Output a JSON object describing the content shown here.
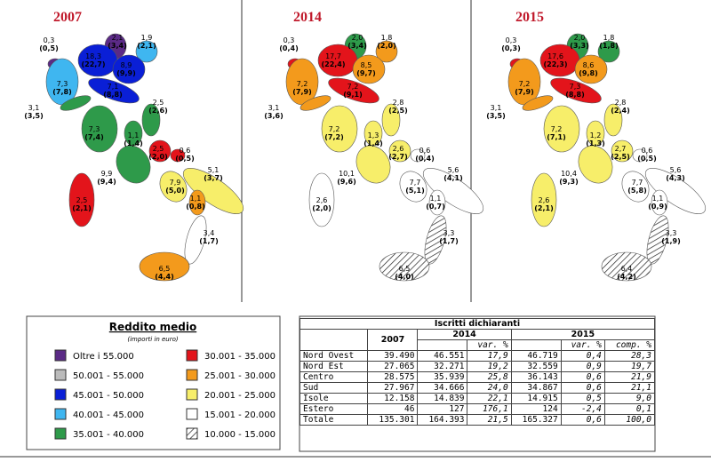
{
  "maps": [
    {
      "title": "2007",
      "regions": [
        {
          "value": "0,3",
          "share": "(0,5)",
          "color": "#5b2a86"
        },
        {
          "value": "2,1",
          "share": "(3,4)",
          "color": "#5b2a86"
        },
        {
          "value": "1,9",
          "share": "(2,1)",
          "color": "#3fb6f0"
        },
        {
          "value": "18,3",
          "share": "(22,7)",
          "color": "#0a1fd6"
        },
        {
          "value": "8,9",
          "share": "(9,9)",
          "color": "#0a1fd6"
        },
        {
          "value": "7,3",
          "share": "(7,8)",
          "color": "#3fb6f0"
        },
        {
          "value": "7,1",
          "share": "(8,8)",
          "color": "#0a1fd6"
        },
        {
          "value": "3,1",
          "share": "(3,5)",
          "color": "#2e9a4a"
        },
        {
          "value": "2,5",
          "share": "(2,6)",
          "color": "#2e9a4a"
        },
        {
          "value": "7,3",
          "share": "(7,4)",
          "color": "#2e9a4a"
        },
        {
          "value": "1,1",
          "share": "(1,4)",
          "color": "#2e9a4a"
        },
        {
          "value": "9,9",
          "share": "(9,4)",
          "color": "#2e9a4a"
        },
        {
          "value": "2,5",
          "share": "(2,0)",
          "color": "#e3141b"
        },
        {
          "value": "0,6",
          "share": "(0,5)",
          "color": "#e3141b"
        },
        {
          "value": "7,9",
          "share": "(5,0)",
          "color": "#f7ee6a"
        },
        {
          "value": "5,1",
          "share": "(3,7)",
          "color": "#f7ee6a"
        },
        {
          "value": "1,1",
          "share": "(0,8)",
          "color": "#f39a1c"
        },
        {
          "value": "3,4",
          "share": "(1,7)",
          "color": "#ffffff"
        },
        {
          "value": "6,5",
          "share": "(4,4)",
          "color": "#f39a1c"
        },
        {
          "value": "2,5",
          "share": "(2,1)",
          "color": "#e3141b"
        }
      ]
    },
    {
      "title": "2014",
      "regions": [
        {
          "value": "0,3",
          "share": "(0,4)",
          "color": "#e3141b"
        },
        {
          "value": "2,0",
          "share": "(3,4)",
          "color": "#2e9a4a"
        },
        {
          "value": "1,8",
          "share": "(2,0)",
          "color": "#f39a1c"
        },
        {
          "value": "17,7",
          "share": "(22,4)",
          "color": "#e3141b"
        },
        {
          "value": "8,5",
          "share": "(9,7)",
          "color": "#f39a1c"
        },
        {
          "value": "7,2",
          "share": "(7,9)",
          "color": "#f39a1c"
        },
        {
          "value": "7,2",
          "share": "(9,1)",
          "color": "#e3141b"
        },
        {
          "value": "3,1",
          "share": "(3,6)",
          "color": "#f39a1c"
        },
        {
          "value": "2,8",
          "share": "(2,5)",
          "color": "#f7ee6a"
        },
        {
          "value": "7,2",
          "share": "(7,2)",
          "color": "#f7ee6a"
        },
        {
          "value": "1,3",
          "share": "(1,4)",
          "color": "#f7ee6a"
        },
        {
          "value": "10,1",
          "share": "(9,6)",
          "color": "#f7ee6a"
        },
        {
          "value": "2,6",
          "share": "(2,7)",
          "color": "#f7ee6a"
        },
        {
          "value": "0,6",
          "share": "(0,4)",
          "color": "#ffffff"
        },
        {
          "value": "7,7",
          "share": "(5,1)",
          "color": "#ffffff"
        },
        {
          "value": "5,6",
          "share": "(4,1)",
          "color": "#ffffff"
        },
        {
          "value": "1,1",
          "share": "(0,7)",
          "color": "#ffffff"
        },
        {
          "value": "3,3",
          "share": "(1,7)",
          "color": "#ffffff",
          "hatched": true
        },
        {
          "value": "6,5",
          "share": "(4,0)",
          "color": "#ffffff",
          "hatched": true
        },
        {
          "value": "2,6",
          "share": "(2,0)",
          "color": "#ffffff"
        }
      ]
    },
    {
      "title": "2015",
      "regions": [
        {
          "value": "0,3",
          "share": "(0,3)",
          "color": "#e3141b"
        },
        {
          "value": "2,0",
          "share": "(3,3)",
          "color": "#2e9a4a"
        },
        {
          "value": "1,8",
          "share": "(1,8)",
          "color": "#2e9a4a"
        },
        {
          "value": "17,6",
          "share": "(22,3)",
          "color": "#e3141b"
        },
        {
          "value": "8,6",
          "share": "(9,8)",
          "color": "#f39a1c"
        },
        {
          "value": "7,2",
          "share": "(7,9)",
          "color": "#f39a1c"
        },
        {
          "value": "7,3",
          "share": "(8,8)",
          "color": "#e3141b"
        },
        {
          "value": "3,1",
          "share": "(3,5)",
          "color": "#f39a1c"
        },
        {
          "value": "2,8",
          "share": "(2,4)",
          "color": "#f7ee6a"
        },
        {
          "value": "7,2",
          "share": "(7,1)",
          "color": "#f7ee6a"
        },
        {
          "value": "1,2",
          "share": "(1,3)",
          "color": "#f7ee6a"
        },
        {
          "value": "10,4",
          "share": "(9,3)",
          "color": "#f7ee6a"
        },
        {
          "value": "2,7",
          "share": "(2,5)",
          "color": "#f7ee6a"
        },
        {
          "value": "0,6",
          "share": "(0,5)",
          "color": "#ffffff"
        },
        {
          "value": "7,7",
          "share": "(5,8)",
          "color": "#ffffff"
        },
        {
          "value": "5,6",
          "share": "(4,3)",
          "color": "#ffffff"
        },
        {
          "value": "1,1",
          "share": "(0,9)",
          "color": "#ffffff"
        },
        {
          "value": "3,3",
          "share": "(1,9)",
          "color": "#ffffff",
          "hatched": true
        },
        {
          "value": "6,4",
          "share": "(4,2)",
          "color": "#ffffff",
          "hatched": true
        },
        {
          "value": "2,6",
          "share": "(2,1)",
          "color": "#f7ee6a"
        }
      ]
    }
  ],
  "legend": {
    "title": "Reddito medio",
    "subtitle": "(importi in euro)",
    "items": [
      {
        "label": "Oltre i 55.000",
        "color": "#5b2a86"
      },
      {
        "label": "50.001 - 55.000",
        "color": "#bbbbbb"
      },
      {
        "label": "45.001 - 50.000",
        "color": "#0a1fd6"
      },
      {
        "label": "40.001 - 45.000",
        "color": "#3fb6f0"
      },
      {
        "label": "35.001 - 40.000",
        "color": "#2e9a4a"
      },
      {
        "label": "30.001 - 35.000",
        "color": "#e3141b"
      },
      {
        "label": "25.001 - 30.000",
        "color": "#f39a1c"
      },
      {
        "label": "20.001 - 25.000",
        "color": "#f7ee6a"
      },
      {
        "label": "15.001 - 20.000",
        "color": "#ffffff"
      },
      {
        "label": "10.000 - 15.000",
        "color": "#ffffff",
        "hatched": true
      }
    ]
  },
  "table": {
    "title": "Iscritti dichiaranti",
    "years": [
      "2007",
      "2014",
      "2015"
    ],
    "subheaders": [
      "var. %",
      "var. %",
      "comp. %"
    ],
    "rows": [
      [
        "Nord Ovest",
        "39.490",
        "46.551",
        "17,9",
        "46.719",
        "0,4",
        "28,3"
      ],
      [
        "Nord Est",
        "27.065",
        "32.271",
        "19,2",
        "32.559",
        "0,9",
        "19,7"
      ],
      [
        "Centro",
        "28.575",
        "35.939",
        "25,8",
        "36.143",
        "0,6",
        "21,9"
      ],
      [
        "Sud",
        "27.967",
        "34.666",
        "24,0",
        "34.867",
        "0,6",
        "21,1"
      ],
      [
        "Isole",
        "12.158",
        "14.839",
        "22,1",
        "14.915",
        "0,5",
        "9,0"
      ],
      [
        "Estero",
        "46",
        "127",
        "176,1",
        "124",
        "-2,4",
        "0,1"
      ],
      [
        "Totale",
        "135.301",
        "164.393",
        "21,5",
        "165.327",
        "0,6",
        "100,0"
      ]
    ]
  }
}
